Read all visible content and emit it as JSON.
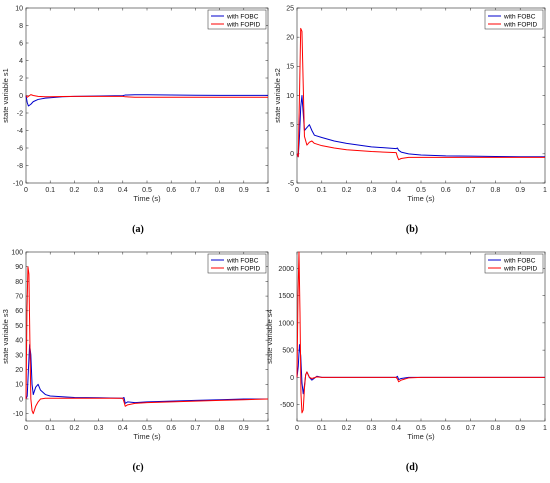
{
  "chart_data": [
    {
      "type": "line",
      "caption": "(a)",
      "xlabel": "Time (s)",
      "ylabel": "state variable s1",
      "xlim": [
        0,
        1
      ],
      "ylim": [
        -10,
        10
      ],
      "xticks": [
        0,
        0.1,
        0.2,
        0.3,
        0.4,
        0.5,
        0.6,
        0.7,
        0.8,
        0.9,
        1
      ],
      "yticks": [
        -10,
        -8,
        -6,
        -4,
        -2,
        0,
        2,
        4,
        6,
        8,
        10
      ],
      "legend": "top-right",
      "series": [
        {
          "name": "with FOBC",
          "color": "#0000cc",
          "x": [
            0,
            0.005,
            0.01,
            0.02,
            0.03,
            0.05,
            0.08,
            0.1,
            0.15,
            0.2,
            0.3,
            0.4,
            0.41,
            0.45,
            0.5,
            0.6,
            0.7,
            0.8,
            0.9,
            1.0
          ],
          "y": [
            0,
            -0.8,
            -1.2,
            -1.0,
            -0.7,
            -0.45,
            -0.3,
            -0.25,
            -0.15,
            -0.1,
            -0.05,
            -0.02,
            0.05,
            0.08,
            0.08,
            0.05,
            0.03,
            0.02,
            0.02,
            0.02
          ]
        },
        {
          "name": "with FOPID",
          "color": "#ff0000",
          "x": [
            0,
            0.005,
            0.01,
            0.02,
            0.03,
            0.05,
            0.08,
            0.1,
            0.15,
            0.2,
            0.3,
            0.4,
            0.41,
            0.45,
            0.5,
            0.6,
            0.7,
            0.8,
            0.9,
            1.0
          ],
          "y": [
            0,
            -0.2,
            -0.1,
            0.1,
            0.0,
            -0.1,
            -0.15,
            -0.15,
            -0.12,
            -0.1,
            -0.1,
            -0.1,
            -0.15,
            -0.2,
            -0.2,
            -0.2,
            -0.2,
            -0.2,
            -0.2,
            -0.2
          ]
        }
      ]
    },
    {
      "type": "line",
      "caption": "(b)",
      "xlabel": "Time (s)",
      "ylabel": "state variable s2",
      "xlim": [
        0,
        1
      ],
      "ylim": [
        -5,
        25
      ],
      "xticks": [
        0,
        0.1,
        0.2,
        0.3,
        0.4,
        0.5,
        0.6,
        0.7,
        0.8,
        0.9,
        1
      ],
      "yticks": [
        -5,
        0,
        5,
        10,
        15,
        20,
        25
      ],
      "legend": "top-right",
      "series": [
        {
          "name": "with FOBC",
          "color": "#0000cc",
          "x": [
            0,
            0.005,
            0.01,
            0.015,
            0.02,
            0.025,
            0.03,
            0.04,
            0.05,
            0.06,
            0.07,
            0.1,
            0.15,
            0.2,
            0.3,
            0.4,
            0.405,
            0.41,
            0.42,
            0.45,
            0.5,
            0.6,
            0.7,
            0.8,
            0.9,
            1.0
          ],
          "y": [
            0,
            -0.5,
            3,
            8,
            10,
            7,
            4,
            4.5,
            5,
            4,
            3.2,
            2.8,
            2.2,
            1.8,
            1.2,
            0.9,
            1.0,
            0.6,
            0.3,
            0.0,
            -0.2,
            -0.35,
            -0.4,
            -0.45,
            -0.5,
            -0.5
          ]
        },
        {
          "name": "with FOPID",
          "color": "#ff0000",
          "x": [
            0,
            0.005,
            0.01,
            0.015,
            0.02,
            0.025,
            0.03,
            0.04,
            0.05,
            0.06,
            0.07,
            0.1,
            0.15,
            0.2,
            0.3,
            0.4,
            0.405,
            0.41,
            0.42,
            0.45,
            0.5,
            0.6,
            0.7,
            0.8,
            0.9,
            1.0
          ],
          "y": [
            0,
            -0.5,
            10,
            21.5,
            21,
            12,
            3,
            1.5,
            2,
            2.2,
            1.8,
            1.4,
            1.0,
            0.7,
            0.4,
            0.2,
            -0.5,
            -1.0,
            -0.8,
            -0.6,
            -0.6,
            -0.6,
            -0.6,
            -0.6,
            -0.6,
            -0.6
          ]
        }
      ]
    },
    {
      "type": "line",
      "caption": "(c)",
      "xlabel": "Time (s)",
      "ylabel": "state variable s3",
      "xlim": [
        0,
        1
      ],
      "ylim": [
        -15,
        100
      ],
      "xticks": [
        0,
        0.1,
        0.2,
        0.3,
        0.4,
        0.5,
        0.6,
        0.7,
        0.8,
        0.9,
        1
      ],
      "yticks": [
        -10,
        0,
        10,
        20,
        30,
        40,
        50,
        60,
        70,
        80,
        90,
        100
      ],
      "legend": "top-right",
      "series": [
        {
          "name": "with FOBC",
          "color": "#0000cc",
          "x": [
            0,
            0.005,
            0.01,
            0.015,
            0.02,
            0.025,
            0.03,
            0.04,
            0.05,
            0.06,
            0.08,
            0.1,
            0.15,
            0.2,
            0.3,
            0.4,
            0.405,
            0.41,
            0.42,
            0.45,
            0.5,
            0.6,
            0.7,
            0.8,
            0.9,
            1.0
          ],
          "y": [
            0,
            2,
            20,
            37,
            30,
            10,
            3,
            8,
            10,
            6,
            3,
            2,
            1.5,
            1,
            0.8,
            0.5,
            1,
            -3,
            -2,
            -2.5,
            -2,
            -1.5,
            -1,
            -0.5,
            0,
            0
          ]
        },
        {
          "name": "with FOPID",
          "color": "#ff0000",
          "x": [
            0,
            0.004,
            0.008,
            0.012,
            0.016,
            0.02,
            0.025,
            0.03,
            0.04,
            0.05,
            0.06,
            0.08,
            0.1,
            0.15,
            0.2,
            0.3,
            0.4,
            0.405,
            0.41,
            0.42,
            0.45,
            0.5,
            0.6,
            0.7,
            0.8,
            0.9,
            1.0
          ],
          "y": [
            0,
            60,
            90,
            85,
            40,
            0,
            -8,
            -10,
            -5,
            -2,
            0,
            0.5,
            0.5,
            0.5,
            0.5,
            0.5,
            0.5,
            -2,
            -5,
            -4,
            -3,
            -2.5,
            -2,
            -1.5,
            -1,
            -0.5,
            0
          ]
        }
      ]
    },
    {
      "type": "line",
      "caption": "(d)",
      "xlabel": "Time (s)",
      "ylabel": "state variable s4",
      "xlim": [
        0,
        1
      ],
      "ylim": [
        -800,
        2300
      ],
      "xticks": [
        0,
        0.1,
        0.2,
        0.3,
        0.4,
        0.5,
        0.6,
        0.7,
        0.8,
        0.9,
        1
      ],
      "yticks": [
        -500,
        0,
        500,
        1000,
        1500,
        2000
      ],
      "legend": "top-right",
      "series": [
        {
          "name": "with FOBC",
          "color": "#0000cc",
          "x": [
            0,
            0.005,
            0.01,
            0.015,
            0.02,
            0.025,
            0.03,
            0.035,
            0.04,
            0.05,
            0.06,
            0.08,
            0.1,
            0.2,
            0.4,
            0.405,
            0.41,
            0.42,
            0.45,
            0.5,
            0.6,
            0.8,
            1.0
          ],
          "y": [
            0,
            200,
            600,
            400,
            -100,
            -300,
            -150,
            50,
            100,
            0,
            -50,
            20,
            0,
            0,
            0,
            20,
            -40,
            -20,
            0,
            0,
            0,
            0,
            0
          ]
        },
        {
          "name": "with FOPID",
          "color": "#ff0000",
          "x": [
            0,
            0.004,
            0.008,
            0.012,
            0.016,
            0.02,
            0.025,
            0.03,
            0.035,
            0.04,
            0.05,
            0.06,
            0.08,
            0.1,
            0.2,
            0.4,
            0.405,
            0.41,
            0.42,
            0.45,
            0.5,
            0.6,
            0.8,
            1.0
          ],
          "y": [
            0,
            1500,
            2300,
            1200,
            -300,
            -650,
            -600,
            -200,
            50,
            100,
            0,
            -20,
            10,
            0,
            0,
            0,
            -30,
            -80,
            -50,
            -10,
            0,
            0,
            0,
            0
          ]
        }
      ]
    }
  ]
}
